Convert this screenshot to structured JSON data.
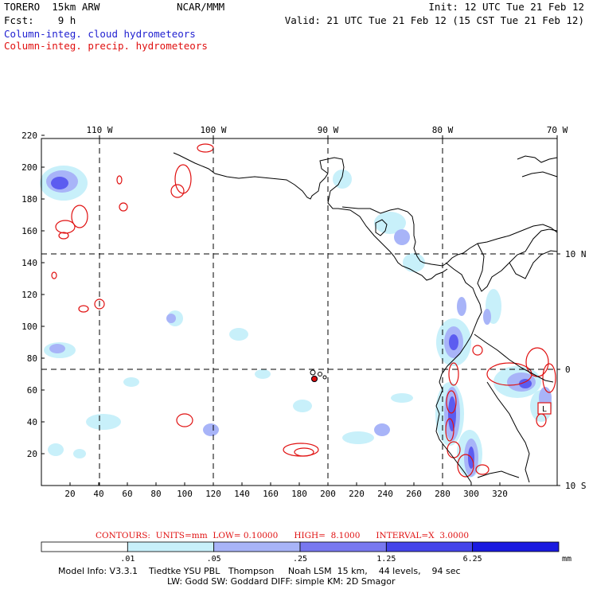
{
  "header": {
    "left1": "TORERO  15km ARW",
    "center1": "NCAR/MMM",
    "right1": "Init: 12 UTC Tue 21 Feb 12",
    "left2": "Fcst:    9 h",
    "right2": "Valid: 21 UTC Tue 21 Feb 12 (15 CST Tue 21 Feb 12)",
    "field1": "Column-integ. cloud hydrometeors",
    "field2": "Column-integ. precip. hydrometeors"
  },
  "map": {
    "lon_labels": [
      "110 W",
      "100 W",
      "90 W",
      "80 W",
      "70 W"
    ],
    "lat_labels": [
      "10 N",
      "0",
      "10 S"
    ],
    "y_ticks": [
      "220",
      "200",
      "180",
      "160",
      "140",
      "120",
      "100",
      "80",
      "60",
      "40",
      "20"
    ],
    "x_ticks": [
      "20",
      "40",
      "60",
      "80",
      "100",
      "120",
      "140",
      "160",
      "180",
      "200",
      "220",
      "240",
      "260",
      "280",
      "300",
      "320"
    ],
    "box_label": "L",
    "colors": {
      "cloud": "#5c5cf0",
      "precip": "#e01010",
      "coast": "#000000"
    }
  },
  "contours_line": "CONTOURS:  UNITS=mm  LOW= 0.10000      HIGH=  8.1000      INTERVAL=X  3.0000",
  "colorbar": {
    "labels": [
      ".01",
      ".05",
      ".25",
      "1.25",
      "6.25"
    ],
    "unit": "mm",
    "colors": [
      "#ffffff",
      "#c8f0fa",
      "#a8b4f8",
      "#7878f0",
      "#4444ea",
      "#1a1ae0"
    ]
  },
  "footer": {
    "line1": "Model Info: V3.3.1    Tiedtke YSU PBL   Thompson     Noah LSM  15 km,    44 levels,    94 sec",
    "line2": "LW: Godd SW: Goddard DIFF: simple KM: 2D Smagor"
  }
}
